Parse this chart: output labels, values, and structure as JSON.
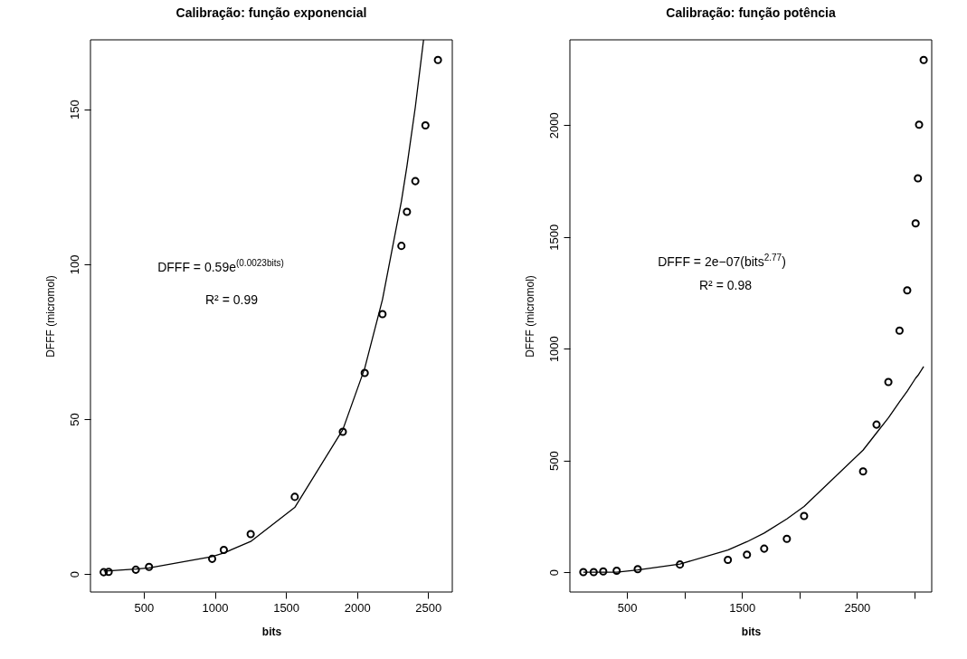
{
  "chart_data": [
    {
      "type": "scatter",
      "title": "Calibração: função exponencial",
      "xlabel": "bits",
      "ylabel": "DFFF (micromol)",
      "xlim": [
        125,
        2670
      ],
      "ylim": [
        -5.8,
        172.4
      ],
      "xticks": [
        500,
        1000,
        1500,
        2000,
        2500
      ],
      "yticks": [
        0,
        50,
        100,
        150
      ],
      "grid": false,
      "marker": "circle",
      "line_style": "solid",
      "annotations": [
        "DFFF = 0.59e$^{(0.0023bits)}$",
        "R² = 0.99"
      ],
      "series": [
        {
          "color": "#000000",
          "x": [
            218,
            253,
            444,
            537,
            981,
            1063,
            1252,
            1562,
            1900,
            2054,
            2179,
            2312,
            2351,
            2410,
            2481,
            2569
          ],
          "values": [
            0.6,
            0.7,
            1.4,
            2.3,
            4.9,
            7.8,
            12.9,
            24.9,
            45.9,
            64.9,
            83.9,
            105.9,
            116.9,
            126.8,
            144.8,
            165.9
          ]
        },
        {
          "type": "line",
          "marker": "none",
          "color": "#000000",
          "x": [
            218,
            253,
            444,
            537,
            981,
            1063,
            1252,
            1562,
            1900,
            2054,
            2179,
            2312,
            2351,
            2410,
            2468
          ],
          "values": [
            1,
            1,
            1.6,
            2,
            5.6,
            6.8,
            10.5,
            21.5,
            46.6,
            66.4,
            88.6,
            120.3,
            131.6,
            150.7,
            172.4
          ]
        }
      ]
    },
    {
      "type": "scatter",
      "title": "Calibração: função potência",
      "xlabel": "bits",
      "ylabel": "DFFF (micromol)",
      "xlim": [
        3,
        3150
      ],
      "ylim": [
        -89,
        2382
      ],
      "xticks": [
        500,
        {
          "value": 1000,
          "label": null
        },
        1500,
        {
          "value": 2000,
          "label": null
        },
        2500,
        {
          "value": 3000,
          "label": null
        }
      ],
      "yticks": [
        0,
        500,
        1000,
        1500,
        2000
      ],
      "grid": false,
      "marker": "circle",
      "line_style": "solid",
      "annotations": [
        "DFFF = 2e−07(bits$^{2.77}$)",
        "R² = 0.98"
      ],
      "series": [
        {
          "color": "#000000",
          "x": [
            120,
            210,
            293,
            410,
            593,
            960,
            1377,
            1543,
            1693,
            1890,
            2040,
            2553,
            2670,
            2773,
            2870,
            2937,
            3010,
            3030,
            3040,
            3080
          ],
          "values": [
            0,
            0,
            3,
            6,
            13,
            34,
            55,
            78,
            105,
            149,
            251,
            451,
            660,
            851,
            1081,
            1261,
            1561,
            1762,
            2002,
            2292
          ]
        },
        {
          "type": "line",
          "marker": "none",
          "color": "#000000",
          "x": [
            120,
            210,
            293,
            410,
            593,
            960,
            1377,
            1543,
            1693,
            1890,
            2040,
            2553,
            2670,
            2773,
            2870,
            2937,
            3010,
            3030,
            3040,
            3080
          ],
          "values": [
            0,
            0,
            0,
            0,
            10,
            36,
            99,
            136,
            175,
            238,
            294,
            546,
            623,
            690,
            762,
            810,
            868,
            880,
            888,
            920
          ]
        }
      ]
    }
  ]
}
